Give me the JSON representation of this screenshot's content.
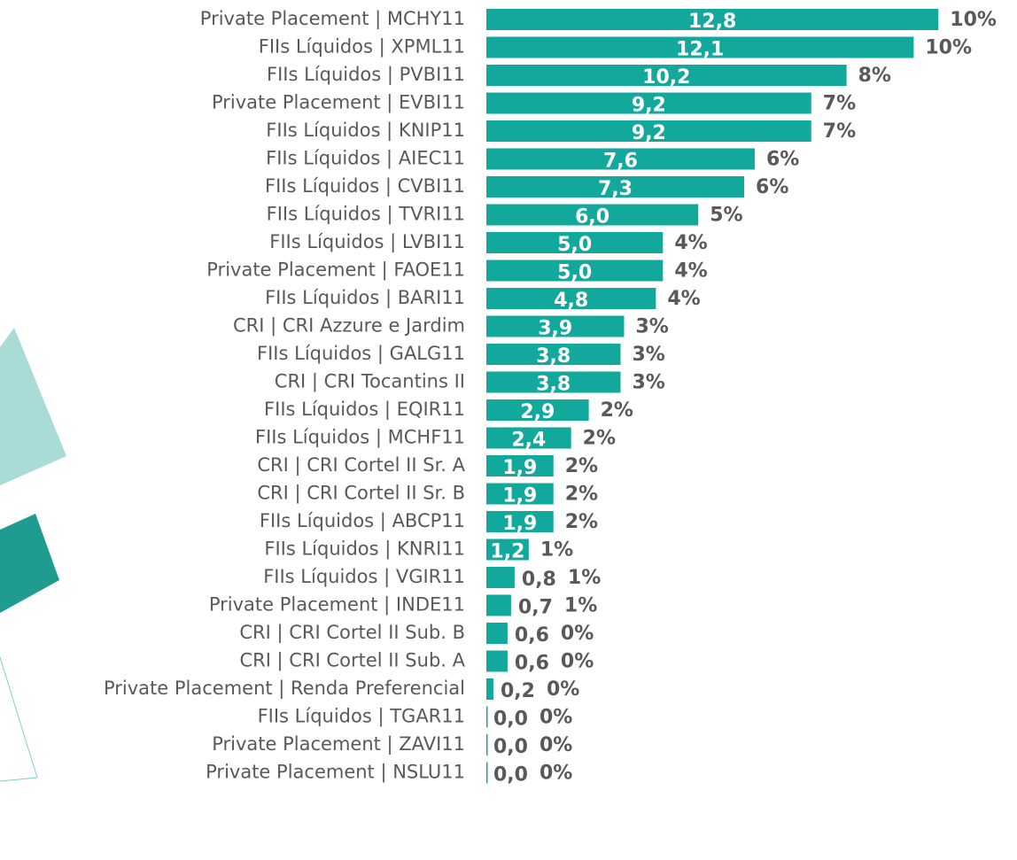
{
  "chart_data": {
    "type": "bar",
    "orientation": "horizontal",
    "color": "#13a89c",
    "xlim": [
      0,
      15
    ],
    "categories": [
      "Private Placement | MCHY11",
      "FIIs Líquidos | XPML11",
      "FIIs Líquidos | PVBI11",
      "Private Placement | EVBI11",
      "FIIs Líquidos | KNIP11",
      "FIIs Líquidos | AIEC11",
      "FIIs Líquidos | CVBI11",
      "FIIs Líquidos | TVRI11",
      "FIIs Líquidos | LVBI11",
      "Private Placement | FAOE11",
      "FIIs Líquidos | BARI11",
      "CRI | CRI Azzure e Jardim",
      "FIIs Líquidos | GALG11",
      "CRI | CRI Tocantins II",
      "FIIs Líquidos | EQIR11",
      "FIIs Líquidos | MCHF11",
      "CRI | CRI Cortel II Sr. A",
      "CRI | CRI Cortel II Sr. B",
      "FIIs Líquidos | ABCP11",
      "FIIs Líquidos | KNRI11",
      "FIIs Líquidos | VGIR11",
      "Private Placement | INDE11",
      "CRI | CRI Cortel II Sub. B",
      "CRI | CRI Cortel II Sub. A",
      "Private Placement | Renda Preferencial",
      "FIIs Líquidos | TGAR11",
      "Private Placement | ZAVI11",
      "Private Placement | NSLU11"
    ],
    "values": [
      12.8,
      12.1,
      10.2,
      9.2,
      9.2,
      7.6,
      7.3,
      6.0,
      5.0,
      5.0,
      4.8,
      3.9,
      3.8,
      3.8,
      2.9,
      2.4,
      1.9,
      1.9,
      1.9,
      1.2,
      0.8,
      0.7,
      0.6,
      0.6,
      0.2,
      0.0,
      0.0,
      0.0
    ],
    "value_labels": [
      "12,8",
      "12,1",
      "10,2",
      "9,2",
      "9,2",
      "7,6",
      "7,3",
      "6,0",
      "5,0",
      "5,0",
      "4,8",
      "3,9",
      "3,8",
      "3,8",
      "2,9",
      "2,4",
      "1,9",
      "1,9",
      "1,9",
      "1,2",
      "0,8",
      "0,7",
      "0,6",
      "0,6",
      "0,2",
      "0,0",
      "0,0",
      "0,0"
    ],
    "shares": [
      10,
      10,
      8,
      7,
      7,
      6,
      6,
      5,
      4,
      4,
      4,
      3,
      3,
      3,
      2,
      2,
      2,
      2,
      2,
      1,
      1,
      1,
      0,
      0,
      0,
      0,
      0,
      0
    ],
    "share_labels": [
      "10%",
      "10%",
      "8%",
      "7%",
      "7%",
      "6%",
      "6%",
      "5%",
      "4%",
      "4%",
      "4%",
      "3%",
      "3%",
      "3%",
      "2%",
      "2%",
      "2%",
      "2%",
      "2%",
      "1%",
      "1%",
      "1%",
      "0%",
      "0%",
      "0%",
      "0%",
      "0%",
      "0%"
    ]
  }
}
